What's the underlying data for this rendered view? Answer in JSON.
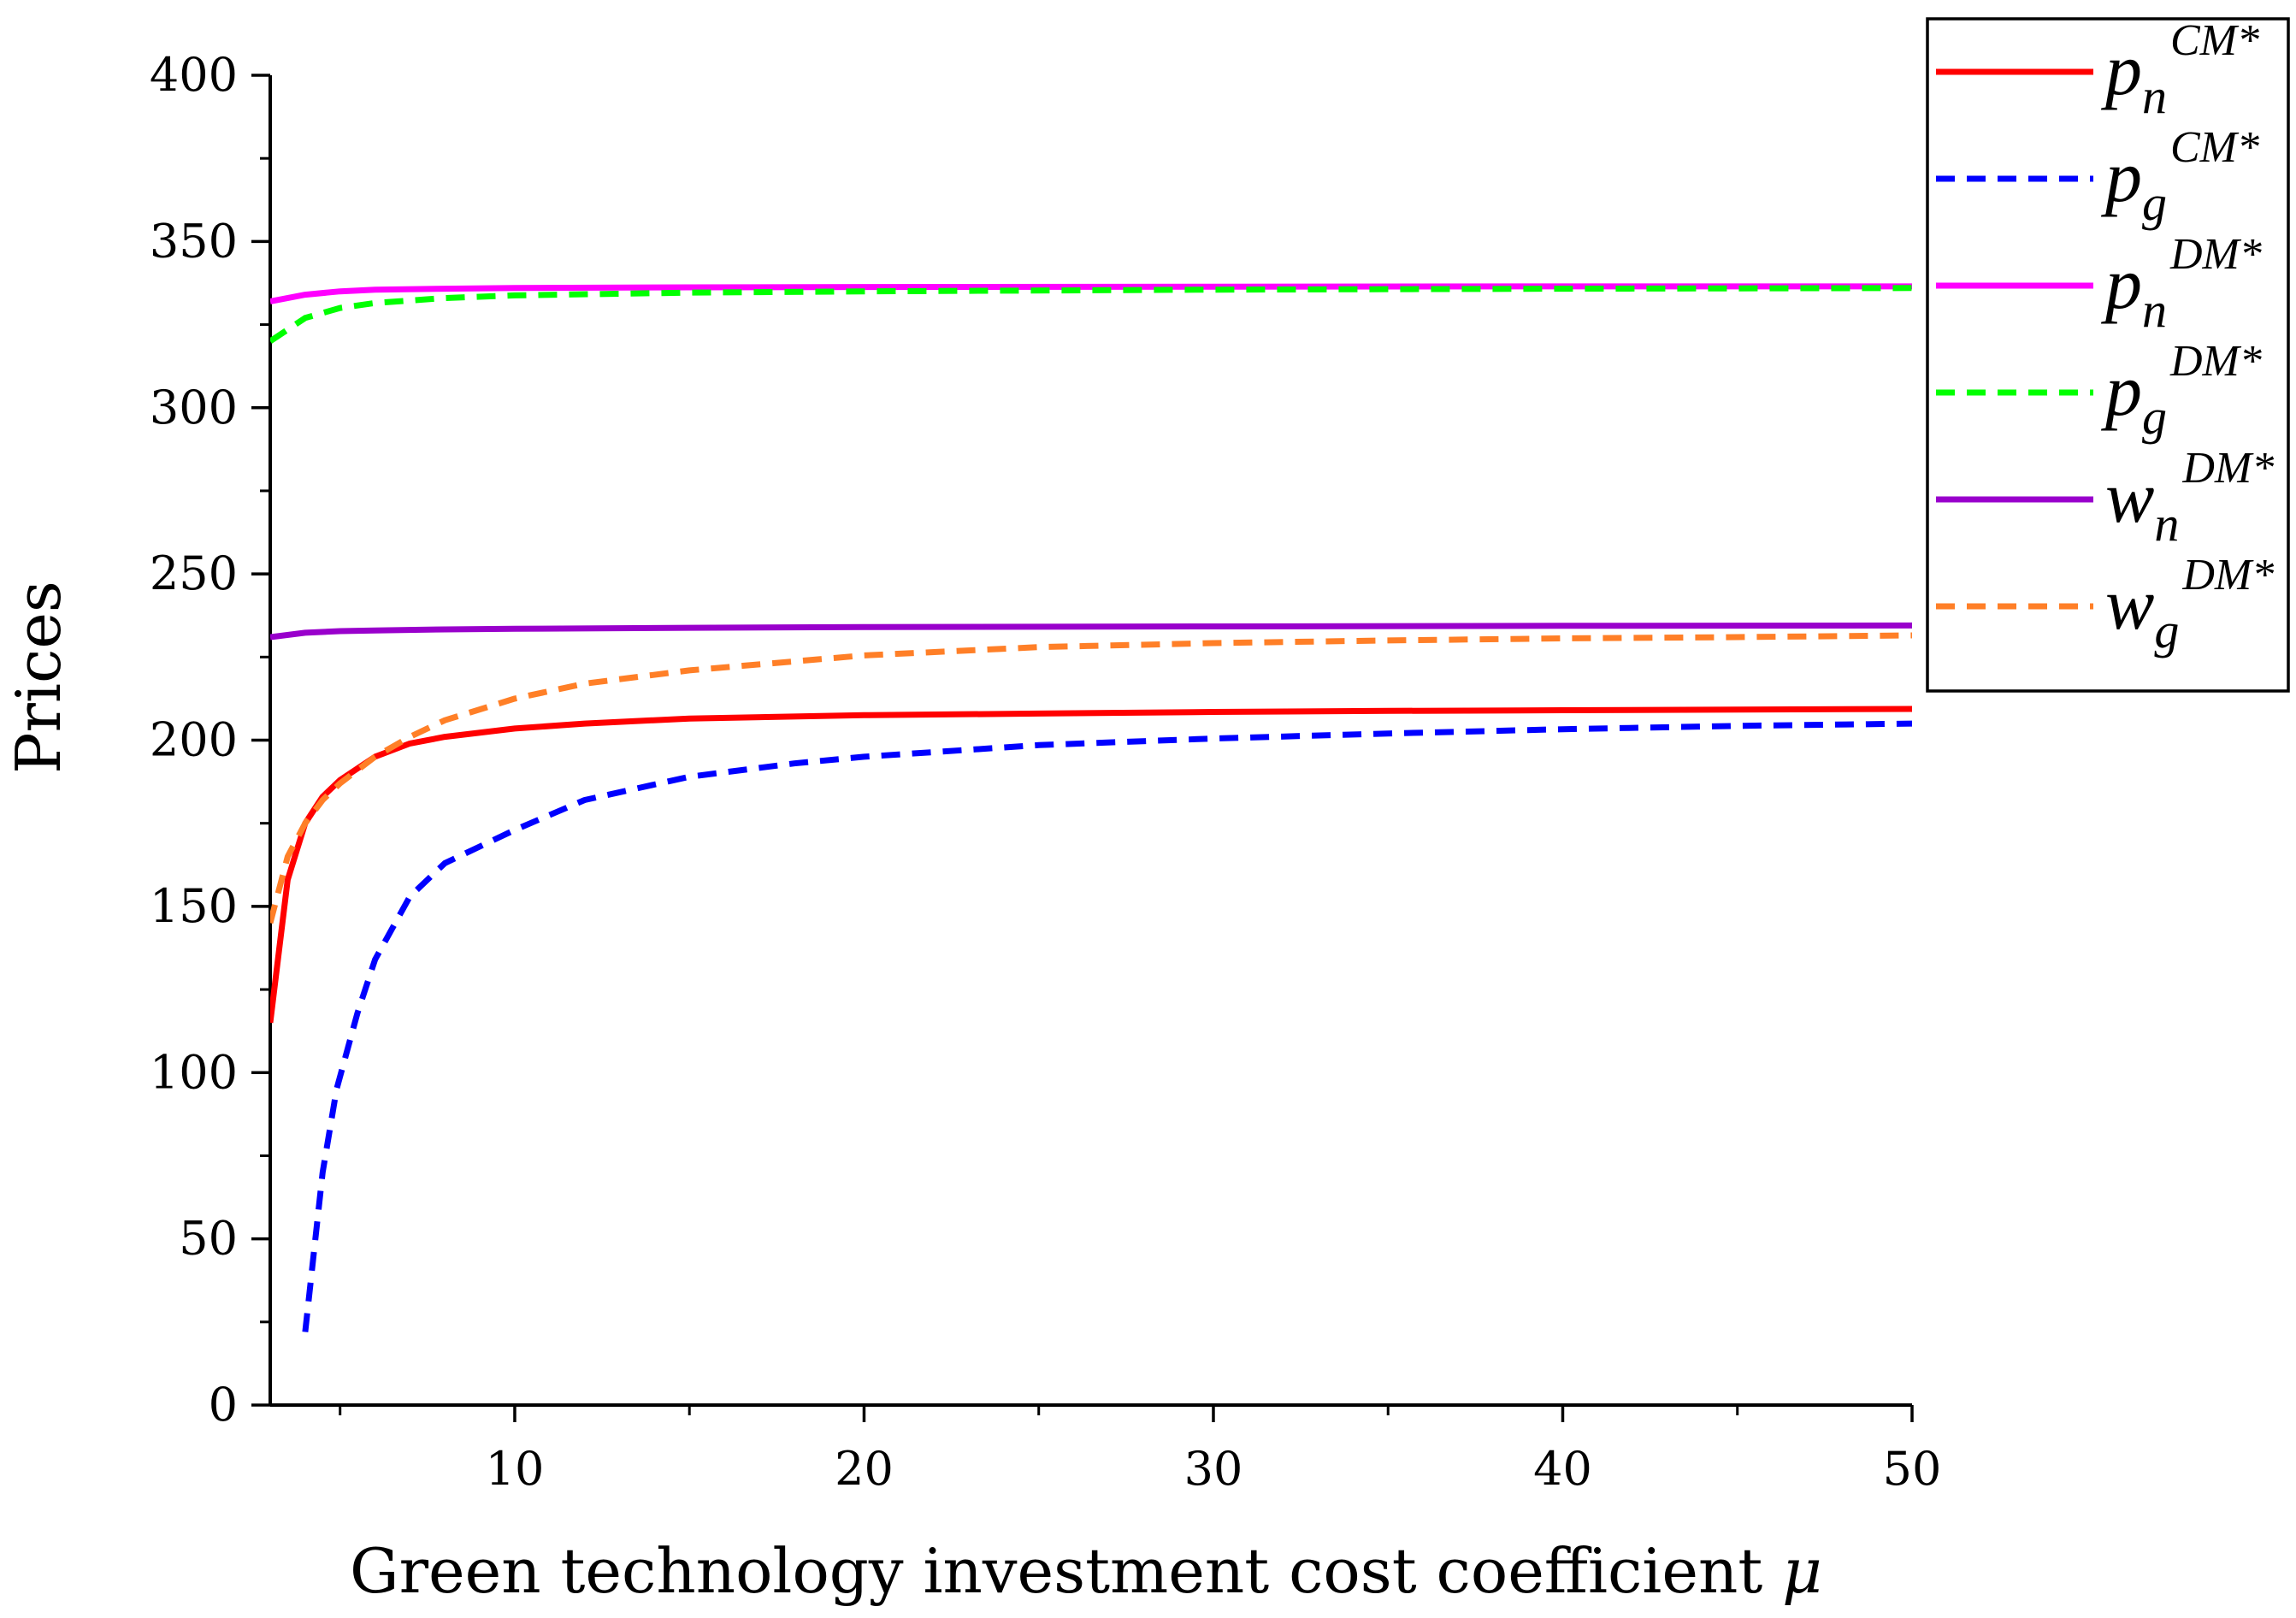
{
  "chart_data": {
    "type": "line",
    "title": "",
    "xlabel": "Green technology investment cost coefficient",
    "xlabel_symbol": "μ",
    "ylabel": "Prices",
    "xlim": [
      3,
      50
    ],
    "ylim": [
      0,
      400
    ],
    "x_ticks": [
      10,
      20,
      30,
      40,
      50
    ],
    "x_minor_ticks": [
      5,
      15,
      25,
      35,
      45
    ],
    "y_ticks": [
      0,
      50,
      100,
      150,
      200,
      250,
      300,
      350,
      400
    ],
    "y_minor_ticks": [
      25,
      75,
      125,
      175,
      225,
      275,
      325,
      375
    ],
    "grid": false,
    "legend_position": "top-right (outside plot)",
    "series": [
      {
        "name": "p_n^CM*",
        "base": "p",
        "sub": "n",
        "sup": "CM*",
        "color": "#ff0000",
        "dash": "solid",
        "x": [
          3,
          3.5,
          4,
          4.5,
          5,
          6,
          7,
          8,
          10,
          12,
          15,
          20,
          25,
          30,
          35,
          40,
          45,
          50
        ],
        "y": [
          115,
          158,
          175,
          183,
          188,
          195,
          199,
          201,
          203.5,
          205,
          206.5,
          207.5,
          208,
          208.5,
          208.8,
          209,
          209.2,
          209.4
        ]
      },
      {
        "name": "p_g^CM*",
        "base": "p",
        "sub": "g",
        "sup": "CM*",
        "color": "#0000ff",
        "dash": "dashed",
        "x": [
          4,
          4.5,
          4.9,
          5.5,
          6,
          7,
          8,
          9,
          10,
          12,
          15,
          18,
          20,
          25,
          30,
          35,
          40,
          45,
          50
        ],
        "y": [
          22,
          70,
          95,
          118,
          134,
          153,
          163,
          168,
          173,
          182,
          189,
          193,
          195,
          198.5,
          200.5,
          202,
          203.3,
          204.3,
          205
        ]
      },
      {
        "name": "p_n^DM*",
        "base": "p",
        "sub": "n",
        "sup": "DM*",
        "color": "#ff00ff",
        "dash": "solid",
        "x": [
          3,
          4,
          5,
          6,
          8,
          10,
          15,
          20,
          30,
          40,
          50
        ],
        "y": [
          332,
          334,
          335,
          335.5,
          335.8,
          336,
          336.2,
          336.3,
          336.4,
          336.5,
          336.5
        ]
      },
      {
        "name": "p_g^DM*",
        "base": "p",
        "sub": "g",
        "sup": "DM*",
        "color": "#00ff00",
        "dash": "dashed",
        "x": [
          3,
          4,
          5,
          6,
          8,
          10,
          15,
          20,
          30,
          40,
          50
        ],
        "y": [
          320,
          327,
          330,
          331.5,
          333,
          333.8,
          334.6,
          335,
          335.5,
          335.8,
          336
        ]
      },
      {
        "name": "w_n^DM*",
        "base": "w",
        "sub": "n",
        "sup": "DM*",
        "color": "#9900cc",
        "dash": "solid",
        "x": [
          3,
          4,
          5,
          6,
          8,
          10,
          15,
          20,
          30,
          40,
          50
        ],
        "y": [
          231,
          232.3,
          232.8,
          233,
          233.3,
          233.5,
          233.8,
          234,
          234.2,
          234.4,
          234.5
        ]
      },
      {
        "name": "w_g^DM*",
        "base": "w",
        "sub": "g",
        "sup": "DM*",
        "color": "#ff7f27",
        "dash": "dashed",
        "x": [
          3,
          3.5,
          4,
          4.5,
          5,
          6,
          7,
          8,
          10,
          12,
          15,
          20,
          25,
          30,
          35,
          40,
          45,
          50
        ],
        "y": [
          145,
          165,
          175,
          182,
          187,
          195,
          201,
          206,
          212.5,
          217,
          221,
          225.5,
          228,
          229.2,
          230,
          230.6,
          231,
          231.5
        ]
      }
    ]
  }
}
